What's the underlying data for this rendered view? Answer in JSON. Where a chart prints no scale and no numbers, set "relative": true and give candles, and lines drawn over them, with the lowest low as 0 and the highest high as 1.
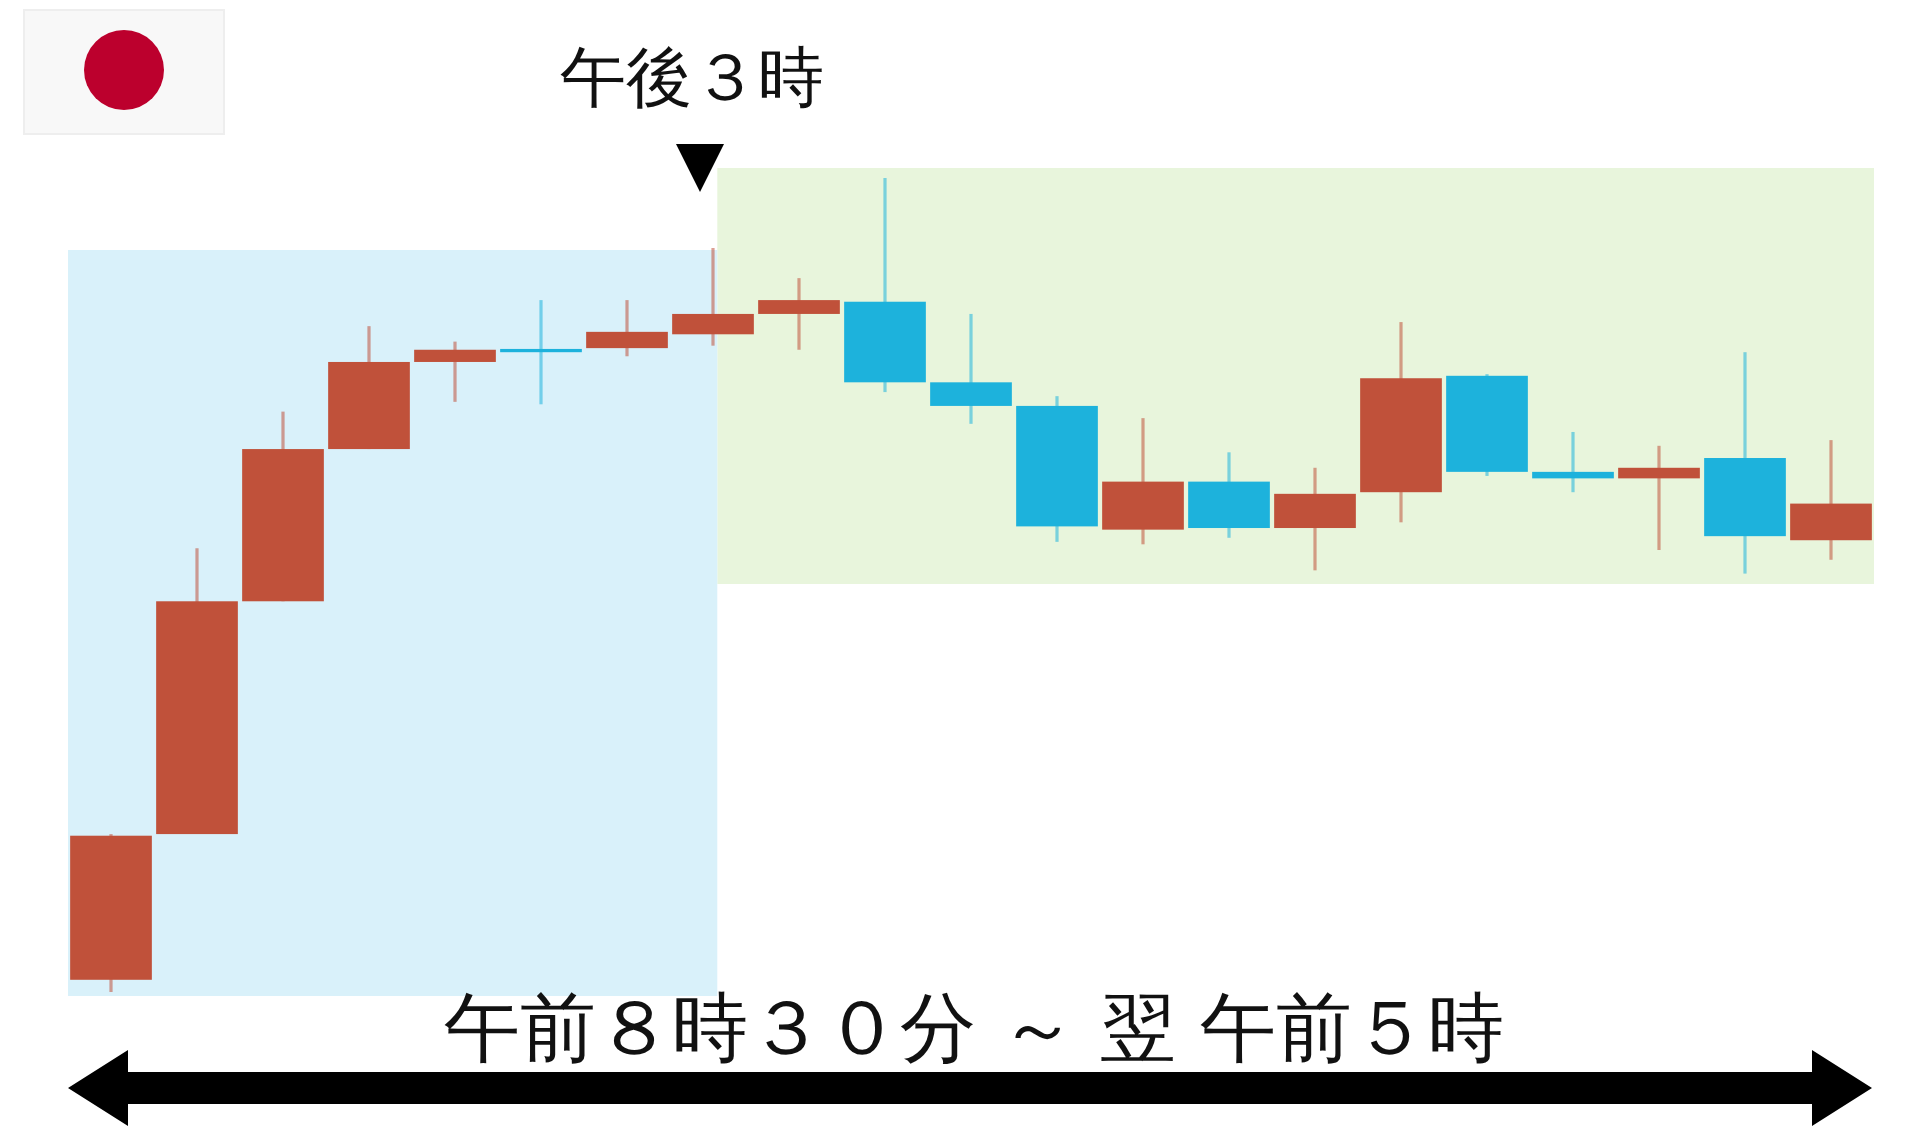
{
  "chart_data": {
    "type": "candlestick",
    "relative": true,
    "categories": [
      null,
      null,
      null,
      null,
      null,
      null,
      null,
      null,
      null,
      null,
      null,
      null,
      null,
      null,
      null,
      null,
      null,
      null,
      null,
      null,
      null
    ],
    "ohlc": [
      [
        0.015,
        0.194,
        0,
        0.192
      ],
      [
        0.194,
        0.545,
        0.194,
        0.48
      ],
      [
        0.48,
        0.713,
        0.48,
        0.667
      ],
      [
        0.667,
        0.818,
        0.667,
        0.774
      ],
      [
        0.774,
        0.799,
        0.725,
        0.789
      ],
      [
        0.79,
        0.85,
        0.722,
        0.786
      ],
      [
        0.791,
        0.85,
        0.781,
        0.811
      ],
      [
        0.808,
        0.914,
        0.794,
        0.833
      ],
      [
        0.833,
        0.877,
        0.789,
        0.85
      ],
      [
        0.848,
        1,
        0.737,
        0.749
      ],
      [
        0.749,
        0.833,
        0.698,
        0.72
      ],
      [
        0.72,
        0.732,
        0.553,
        0.572
      ],
      [
        0.568,
        0.705,
        0.55,
        0.627
      ],
      [
        0.627,
        0.663,
        0.558,
        0.57
      ],
      [
        0.57,
        0.644,
        0.518,
        0.612
      ],
      [
        0.614,
        0.823,
        0.577,
        0.754
      ],
      [
        0.757,
        0.759,
        0.634,
        0.639
      ],
      [
        0.639,
        0.688,
        0.614,
        0.631
      ],
      [
        0.631,
        0.671,
        0.543,
        0.644
      ],
      [
        0.656,
        0.786,
        0.514,
        0.56
      ],
      [
        0.555,
        0.678,
        0.531,
        0.6
      ]
    ],
    "colors": [
      "#c0513a",
      "#c0513a",
      "#c0513a",
      "#c0513a",
      "#c0513a",
      "#1db2dc",
      "#c0513a",
      "#c0513a",
      "#c0513a",
      "#1db2dc",
      "#1db2dc",
      "#1db2dc",
      "#c0513a",
      "#1db2dc",
      "#c0513a",
      "#c0513a",
      "#1db2dc",
      "#1db2dc",
      "#c0513a",
      "#1db2dc",
      "#c0513a"
    ],
    "annotations": [
      "午後３時",
      "午前８時３０分 ～ 翌 午前５時"
    ]
  }
}
